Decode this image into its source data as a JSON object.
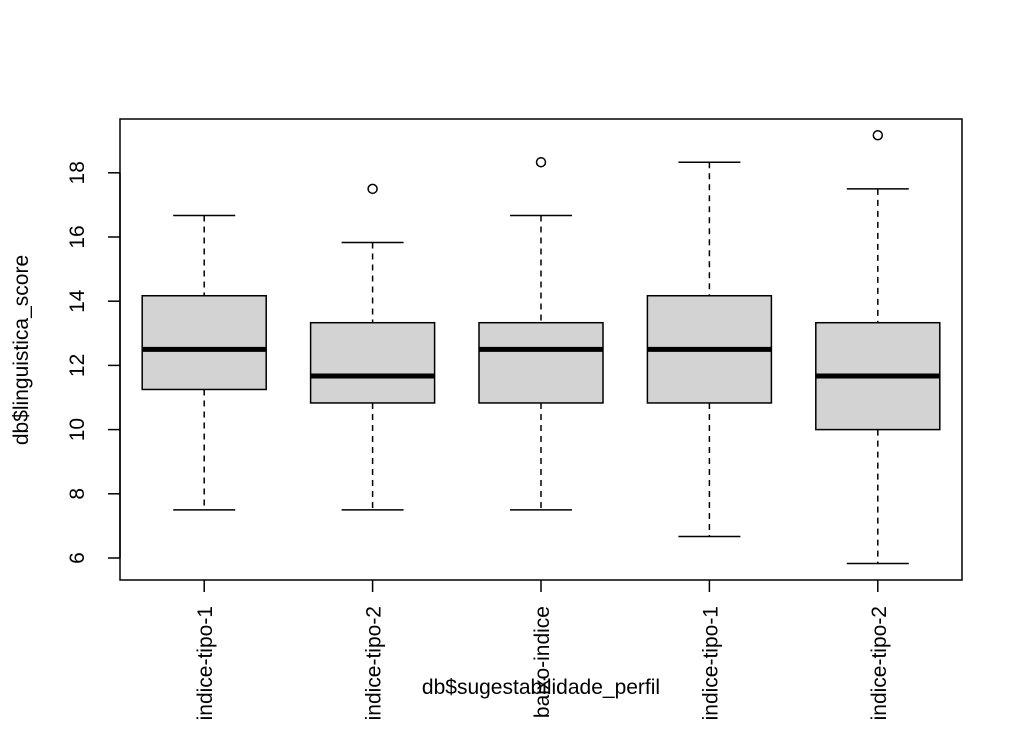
{
  "chart_data": {
    "type": "boxplot",
    "xlabel": "db$sugestabilidade_perfil",
    "ylabel": "db$linguistica_score",
    "ylim": [
      5.3,
      19.6
    ],
    "yticks": [
      6,
      8,
      10,
      12,
      14,
      16,
      18
    ],
    "categories": [
      "indice-tipo-1",
      "indice-tipo-2",
      "baixo-indice",
      "indice-tipo-1",
      "indice-tipo-2"
    ],
    "boxes": [
      {
        "lower_whisker": 7.5,
        "q1": 11.25,
        "median": 12.5,
        "q3": 14.17,
        "upper_whisker": 16.67,
        "outliers": []
      },
      {
        "lower_whisker": 7.5,
        "q1": 10.83,
        "median": 11.67,
        "q3": 13.33,
        "upper_whisker": 15.83,
        "outliers": [
          17.5
        ]
      },
      {
        "lower_whisker": 7.5,
        "q1": 10.83,
        "median": 12.5,
        "q3": 13.33,
        "upper_whisker": 16.67,
        "outliers": [
          18.33
        ]
      },
      {
        "lower_whisker": 6.67,
        "q1": 10.83,
        "median": 12.5,
        "q3": 14.17,
        "upper_whisker": 18.33,
        "outliers": []
      },
      {
        "lower_whisker": 5.83,
        "q1": 10.0,
        "median": 11.67,
        "q3": 13.33,
        "upper_whisker": 17.5,
        "outliers": [
          19.17
        ]
      }
    ],
    "box_color": "#d3d3d3",
    "line_color": "#000000"
  }
}
